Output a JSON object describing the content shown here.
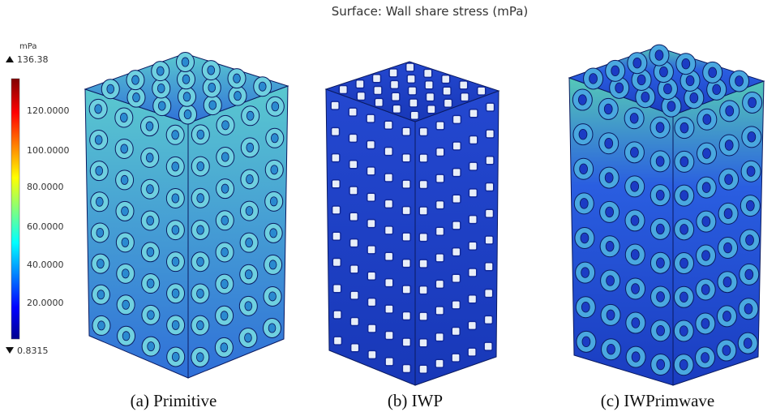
{
  "title": "Surface: Wall share stress (mPa)",
  "colorbar": {
    "unit": "mPa",
    "max": "136.38",
    "min": "0.8315",
    "ticks": [
      "120.0000",
      "100.0000",
      "80.0000",
      "60.0000",
      "40.0000",
      "20.0000"
    ]
  },
  "panels": [
    {
      "caption": "(a) Primitive"
    },
    {
      "caption": "(b) IWP"
    },
    {
      "caption": "(c) IWPrimwave"
    }
  ]
}
